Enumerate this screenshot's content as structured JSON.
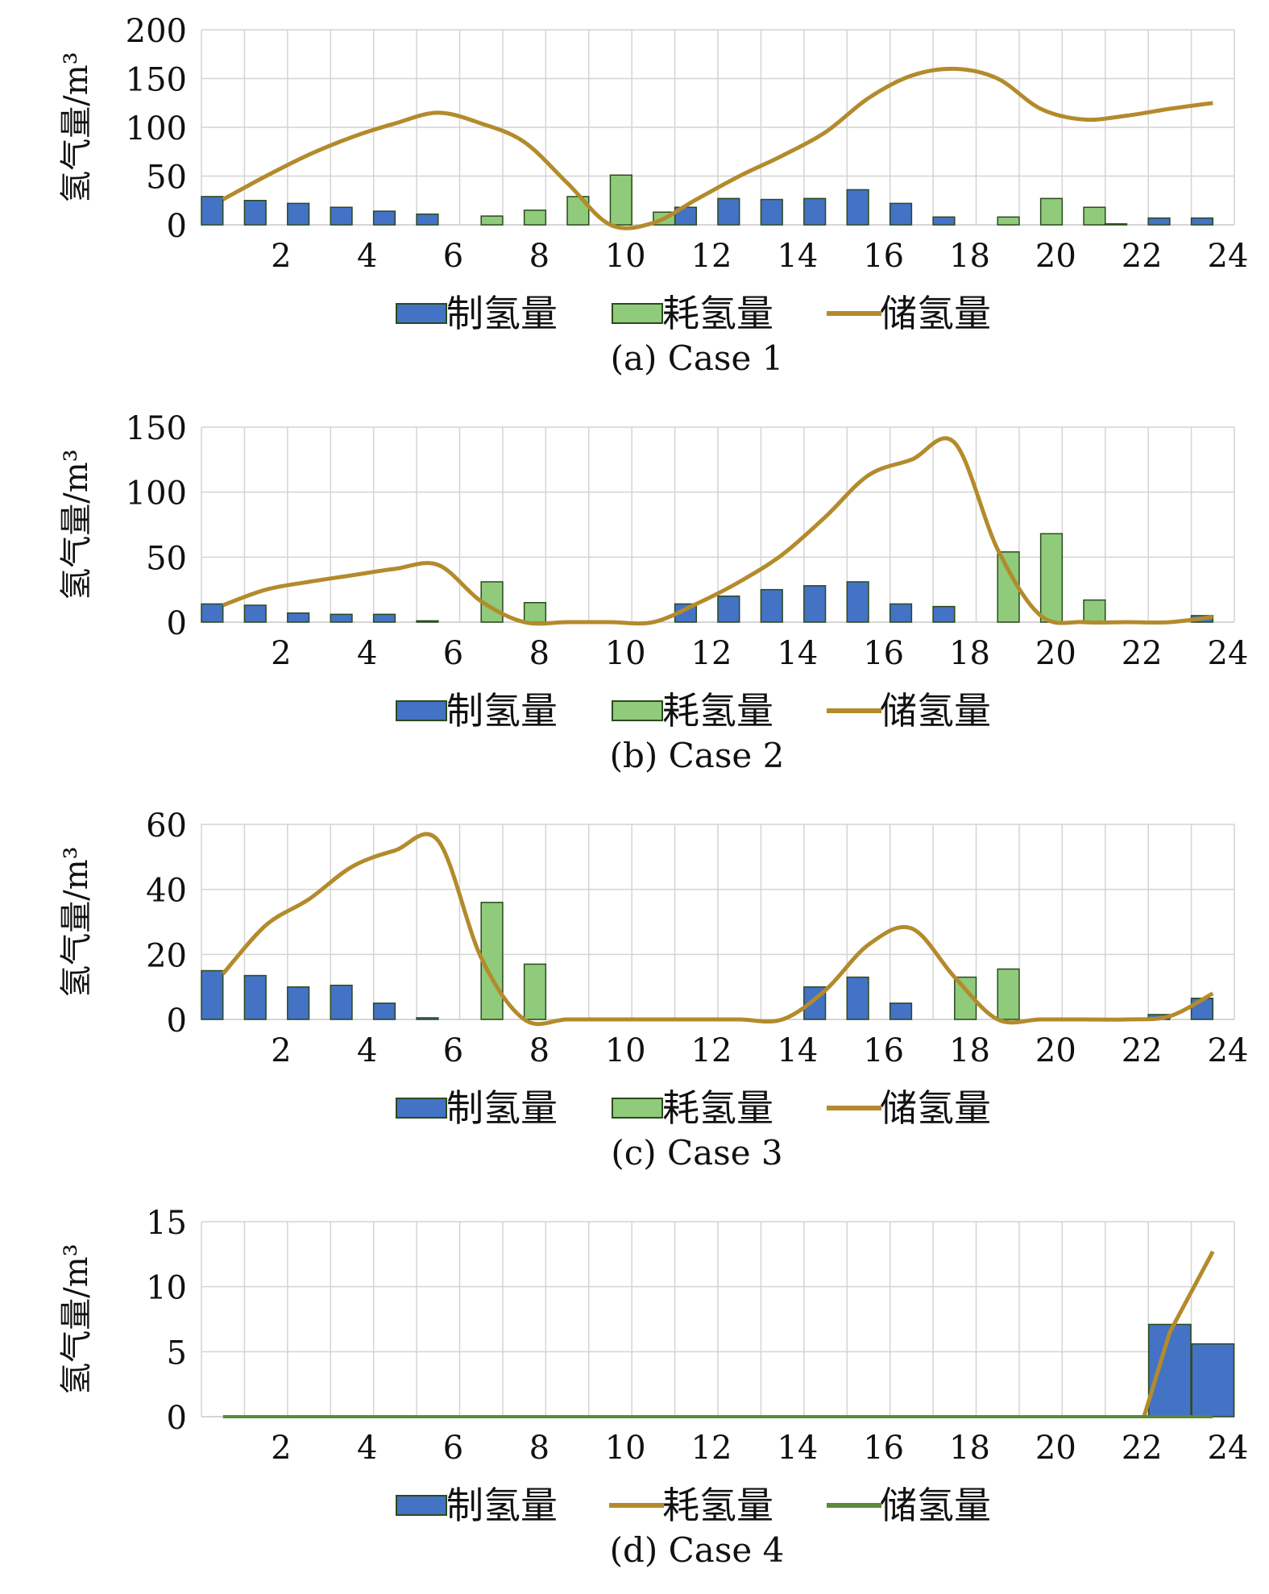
{
  "chart_data": [
    {
      "type": "bar",
      "caption": "(a) Case 1",
      "ylabel": "氢气量/m³",
      "ylim": [
        0,
        200
      ],
      "yticks": [
        0,
        50,
        100,
        150,
        200
      ],
      "x": [
        1,
        2,
        3,
        4,
        5,
        6,
        7,
        8,
        9,
        10,
        11,
        12,
        13,
        14,
        15,
        16,
        17,
        18,
        19,
        20,
        21,
        22,
        23,
        24
      ],
      "xticks": [
        2,
        4,
        6,
        8,
        10,
        12,
        14,
        16,
        18,
        20,
        22,
        24
      ],
      "grid": true,
      "legend_position": "bottom",
      "series": [
        {
          "name": "制氢量",
          "kind": "bar",
          "color": "#4472C4",
          "values": [
            29,
            25,
            22,
            18,
            14,
            11,
            0,
            0,
            0,
            0,
            0,
            18,
            27,
            26,
            27,
            36,
            22,
            8,
            0,
            0,
            0,
            1,
            7,
            7
          ]
        },
        {
          "name": "耗氢量",
          "kind": "bar",
          "color": "#8FCB7B",
          "values": [
            0,
            0,
            0,
            0,
            0,
            0,
            9,
            15,
            29,
            51,
            13,
            0,
            0,
            0,
            0,
            0,
            0,
            0,
            8,
            27,
            18,
            0,
            0,
            0
          ]
        },
        {
          "name": "储氢量",
          "kind": "line",
          "color": "#B38B2C",
          "values": [
            26,
            50,
            72,
            90,
            104,
            115,
            104,
            85,
            43,
            0,
            2,
            26,
            50,
            71,
            95,
            130,
            153,
            160,
            150,
            119,
            108,
            112,
            119,
            125
          ]
        }
      ]
    },
    {
      "type": "bar",
      "caption": "(b) Case 2",
      "ylabel": "氢气量/m³",
      "ylim": [
        0,
        150
      ],
      "yticks": [
        0,
        50,
        100,
        150
      ],
      "x": [
        1,
        2,
        3,
        4,
        5,
        6,
        7,
        8,
        9,
        10,
        11,
        12,
        13,
        14,
        15,
        16,
        17,
        18,
        19,
        20,
        21,
        22,
        23,
        24
      ],
      "xticks": [
        2,
        4,
        6,
        8,
        10,
        12,
        14,
        16,
        18,
        20,
        22,
        24
      ],
      "grid": true,
      "legend_position": "bottom",
      "series": [
        {
          "name": "制氢量",
          "kind": "bar",
          "color": "#4472C4",
          "values": [
            14,
            13,
            7,
            6,
            6,
            1,
            0,
            0,
            0,
            0,
            0,
            14,
            20,
            25,
            28,
            31,
            14,
            12,
            0,
            0,
            0,
            0,
            0,
            5
          ]
        },
        {
          "name": "耗氢量",
          "kind": "bar",
          "color": "#8FCB7B",
          "values": [
            0,
            0,
            0,
            0,
            0,
            0,
            31,
            15,
            0,
            0,
            0,
            0,
            0,
            0,
            0,
            0,
            0,
            0,
            54,
            68,
            17,
            0,
            0,
            0
          ]
        },
        {
          "name": "储氢量",
          "kind": "line",
          "color": "#B38B2C",
          "values": [
            13,
            25,
            31,
            36,
            41,
            44,
            16,
            0,
            0,
            0,
            0,
            14,
            31,
            52,
            81,
            113,
            125,
            138,
            56,
            5,
            0,
            0,
            0,
            4
          ]
        }
      ]
    },
    {
      "type": "bar",
      "caption": "(c) Case 3",
      "ylabel": "氢气量/m³",
      "ylim": [
        0,
        60
      ],
      "yticks": [
        0,
        20,
        40,
        60
      ],
      "x": [
        1,
        2,
        3,
        4,
        5,
        6,
        7,
        8,
        9,
        10,
        11,
        12,
        13,
        14,
        15,
        16,
        17,
        18,
        19,
        20,
        21,
        22,
        23,
        24
      ],
      "xticks": [
        2,
        4,
        6,
        8,
        10,
        12,
        14,
        16,
        18,
        20,
        22,
        24
      ],
      "grid": true,
      "legend_position": "bottom",
      "series": [
        {
          "name": "制氢量",
          "kind": "bar",
          "color": "#4472C4",
          "values": [
            15,
            13.5,
            10,
            10.5,
            5,
            0.5,
            0,
            0,
            0,
            0,
            0,
            0,
            0,
            0,
            10,
            13,
            5,
            0,
            0,
            0,
            0,
            0,
            1.5,
            6.5
          ]
        },
        {
          "name": "耗氢量",
          "kind": "bar",
          "color": "#8FCB7B",
          "values": [
            0,
            0,
            0,
            0,
            0,
            0,
            36,
            17,
            0,
            0,
            0,
            0,
            0,
            0,
            0,
            0,
            0,
            13,
            15.5,
            0,
            0,
            0,
            0,
            0
          ]
        },
        {
          "name": "储氢量",
          "kind": "line",
          "color": "#B38B2C",
          "values": [
            14,
            29,
            37,
            47,
            52,
            55,
            19,
            0,
            0,
            0,
            0,
            0,
            0,
            0,
            9,
            23,
            28,
            13,
            0,
            0,
            0,
            0,
            1,
            8
          ]
        }
      ]
    },
    {
      "type": "bar",
      "caption": "(d) Case 4",
      "ylabel": "氢气量/m³",
      "ylim": [
        0,
        15
      ],
      "yticks": [
        0,
        5,
        10,
        15
      ],
      "x": [
        1,
        2,
        3,
        4,
        5,
        6,
        7,
        8,
        9,
        10,
        11,
        12,
        13,
        14,
        15,
        16,
        17,
        18,
        19,
        20,
        21,
        22,
        23,
        24
      ],
      "xticks": [
        2,
        4,
        6,
        8,
        10,
        12,
        14,
        16,
        18,
        20,
        22,
        24
      ],
      "grid": true,
      "legend_position": "bottom",
      "series": [
        {
          "name": "制氢量",
          "kind": "bar",
          "color": "#4472C4",
          "values": [
            0,
            0,
            0,
            0,
            0,
            0,
            0,
            0,
            0,
            0,
            0,
            0,
            0,
            0,
            0,
            0,
            0,
            0,
            0,
            0,
            0,
            0,
            7.1,
            5.6
          ]
        },
        {
          "name": "耗氢量",
          "kind": "line",
          "color": "#B38B2C",
          "values": [
            0,
            0,
            0,
            0,
            0,
            0,
            0,
            0,
            0,
            0,
            0,
            0,
            0,
            0,
            0,
            0,
            0,
            0,
            0,
            0,
            0,
            0,
            6.5,
            12.7
          ]
        },
        {
          "name": "储氢量",
          "kind": "line",
          "color": "#5A8A3A",
          "values": [
            0,
            0,
            0,
            0,
            0,
            0,
            0,
            0,
            0,
            0,
            0,
            0,
            0,
            0,
            0,
            0,
            0,
            0,
            0,
            0,
            0,
            0,
            0,
            0
          ]
        }
      ]
    }
  ]
}
